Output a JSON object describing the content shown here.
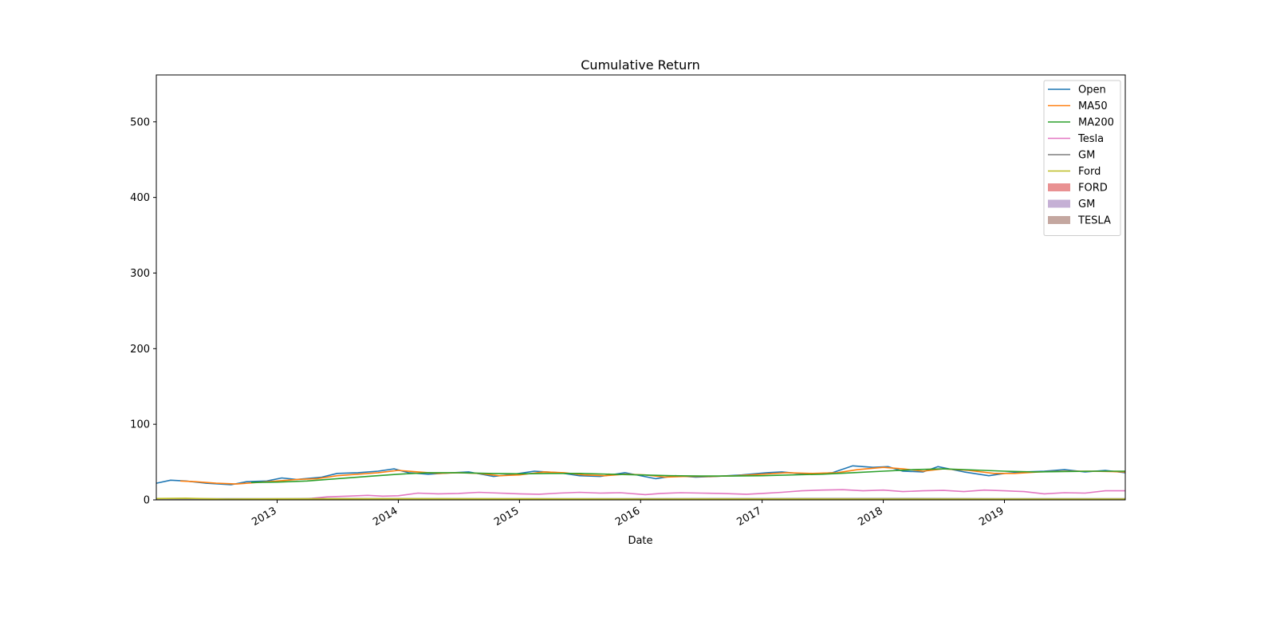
{
  "chart_data": {
    "type": "line",
    "title": "Cumulative Return",
    "xlabel": "Date",
    "ylabel": "",
    "xlim": [
      "2012-01-03",
      "2019-12-31"
    ],
    "ylim": [
      0,
      562
    ],
    "x_ticks": [
      "2013",
      "2014",
      "2015",
      "2016",
      "2017",
      "2018",
      "2019"
    ],
    "y_ticks": [
      0,
      100,
      200,
      300,
      400,
      500
    ],
    "grid": false,
    "legend_position": "upper-right",
    "series": [
      {
        "name": "Open",
        "color": "#1f77b4",
        "points": [
          [
            "2012-01-03",
            22
          ],
          [
            "2012-02-15",
            26
          ],
          [
            "2012-04-01",
            25
          ],
          [
            "2012-06-01",
            22
          ],
          [
            "2012-08-15",
            20
          ],
          [
            "2012-10-01",
            24
          ],
          [
            "2012-12-01",
            25
          ],
          [
            "2013-01-15",
            29
          ],
          [
            "2013-03-01",
            27
          ],
          [
            "2013-05-15",
            30
          ],
          [
            "2013-07-01",
            35
          ],
          [
            "2013-09-01",
            36
          ],
          [
            "2013-11-01",
            38
          ],
          [
            "2013-12-20",
            41
          ],
          [
            "2014-02-01",
            36
          ],
          [
            "2014-04-01",
            34
          ],
          [
            "2014-06-15",
            36
          ],
          [
            "2014-08-01",
            37
          ],
          [
            "2014-10-15",
            31
          ],
          [
            "2014-12-15",
            34
          ],
          [
            "2015-02-15",
            38
          ],
          [
            "2015-05-01",
            36
          ],
          [
            "2015-07-01",
            32
          ],
          [
            "2015-09-01",
            31
          ],
          [
            "2015-11-15",
            36
          ],
          [
            "2016-02-15",
            28
          ],
          [
            "2016-04-15",
            32
          ],
          [
            "2016-06-15",
            30
          ],
          [
            "2016-08-15",
            31
          ],
          [
            "2016-11-01",
            33
          ],
          [
            "2017-01-15",
            36
          ],
          [
            "2017-03-01",
            37
          ],
          [
            "2017-05-15",
            34
          ],
          [
            "2017-08-01",
            36
          ],
          [
            "2017-10-01",
            45
          ],
          [
            "2017-12-01",
            43
          ],
          [
            "2018-01-15",
            44
          ],
          [
            "2018-03-01",
            38
          ],
          [
            "2018-05-01",
            37
          ],
          [
            "2018-06-15",
            44
          ],
          [
            "2018-09-01",
            37
          ],
          [
            "2018-11-15",
            32
          ],
          [
            "2019-01-01",
            35
          ],
          [
            "2019-03-01",
            37
          ],
          [
            "2019-05-01",
            38
          ],
          [
            "2019-07-01",
            40
          ],
          [
            "2019-09-01",
            37
          ],
          [
            "2019-11-01",
            39
          ],
          [
            "2019-12-31",
            36
          ]
        ]
      },
      {
        "name": "MA50",
        "color": "#ff7f0e",
        "points": [
          [
            "2012-03-15",
            25
          ],
          [
            "2012-05-01",
            24
          ],
          [
            "2012-07-01",
            22
          ],
          [
            "2012-09-01",
            21
          ],
          [
            "2012-11-01",
            23
          ],
          [
            "2013-01-01",
            25
          ],
          [
            "2013-03-01",
            27
          ],
          [
            "2013-05-01",
            28
          ],
          [
            "2013-07-01",
            32
          ],
          [
            "2013-09-01",
            34
          ],
          [
            "2013-11-01",
            36
          ],
          [
            "2014-01-01",
            39
          ],
          [
            "2014-03-01",
            37
          ],
          [
            "2014-05-01",
            35
          ],
          [
            "2014-07-01",
            36
          ],
          [
            "2014-09-01",
            35
          ],
          [
            "2014-11-01",
            32
          ],
          [
            "2015-01-01",
            33
          ],
          [
            "2015-03-15",
            37
          ],
          [
            "2015-05-15",
            36
          ],
          [
            "2015-07-15",
            33
          ],
          [
            "2015-09-15",
            32
          ],
          [
            "2015-11-15",
            34
          ],
          [
            "2016-01-15",
            33
          ],
          [
            "2016-03-15",
            30
          ],
          [
            "2016-05-15",
            31
          ],
          [
            "2016-08-01",
            31
          ],
          [
            "2016-10-15",
            32
          ],
          [
            "2017-01-01",
            34
          ],
          [
            "2017-03-15",
            36
          ],
          [
            "2017-06-01",
            35
          ],
          [
            "2017-08-15",
            36
          ],
          [
            "2017-10-15",
            40
          ],
          [
            "2018-01-01",
            43
          ],
          [
            "2018-03-01",
            41
          ],
          [
            "2018-05-01",
            38
          ],
          [
            "2018-07-01",
            41
          ],
          [
            "2018-09-15",
            39
          ],
          [
            "2018-12-01",
            35
          ],
          [
            "2019-02-01",
            35
          ],
          [
            "2019-04-15",
            37
          ],
          [
            "2019-07-01",
            38
          ],
          [
            "2019-09-15",
            38
          ],
          [
            "2019-12-31",
            37
          ]
        ]
      },
      {
        "name": "MA200",
        "color": "#2ca02c",
        "points": [
          [
            "2012-10-15",
            23
          ],
          [
            "2013-01-01",
            23.5
          ],
          [
            "2013-04-01",
            25
          ],
          [
            "2013-07-01",
            28
          ],
          [
            "2013-10-01",
            31
          ],
          [
            "2014-01-01",
            34
          ],
          [
            "2014-04-01",
            36
          ],
          [
            "2014-07-01",
            36
          ],
          [
            "2014-10-01",
            35
          ],
          [
            "2015-01-01",
            34.5
          ],
          [
            "2015-04-01",
            35
          ],
          [
            "2015-07-01",
            35
          ],
          [
            "2015-10-01",
            34
          ],
          [
            "2016-01-01",
            33
          ],
          [
            "2016-04-01",
            32
          ],
          [
            "2016-07-01",
            31.5
          ],
          [
            "2016-10-01",
            31.5
          ],
          [
            "2017-01-01",
            32
          ],
          [
            "2017-04-01",
            33
          ],
          [
            "2017-07-01",
            34
          ],
          [
            "2017-10-01",
            36
          ],
          [
            "2018-01-01",
            38
          ],
          [
            "2018-04-01",
            40
          ],
          [
            "2018-07-01",
            41
          ],
          [
            "2018-10-01",
            39.5
          ],
          [
            "2019-01-01",
            38
          ],
          [
            "2019-04-01",
            37
          ],
          [
            "2019-07-01",
            37.5
          ],
          [
            "2019-10-01",
            38
          ],
          [
            "2019-12-31",
            38
          ]
        ]
      },
      {
        "name": "Tesla",
        "color": "#e377c2",
        "points": [
          [
            "2013-03-01",
            1
          ],
          [
            "2013-04-15",
            2
          ],
          [
            "2013-06-01",
            4
          ],
          [
            "2013-08-01",
            5
          ],
          [
            "2013-10-01",
            6
          ],
          [
            "2013-11-15",
            5
          ],
          [
            "2014-01-01",
            5.5
          ],
          [
            "2014-03-01",
            9
          ],
          [
            "2014-05-01",
            8
          ],
          [
            "2014-07-01",
            8.5
          ],
          [
            "2014-09-01",
            10
          ],
          [
            "2014-11-01",
            9
          ],
          [
            "2015-01-01",
            8
          ],
          [
            "2015-03-01",
            7.5
          ],
          [
            "2015-05-01",
            9
          ],
          [
            "2015-07-01",
            10
          ],
          [
            "2015-09-01",
            9
          ],
          [
            "2015-11-01",
            9.5
          ],
          [
            "2016-01-15",
            7
          ],
          [
            "2016-03-01",
            8.5
          ],
          [
            "2016-05-01",
            9.5
          ],
          [
            "2016-07-01",
            9
          ],
          [
            "2016-09-01",
            8.5
          ],
          [
            "2016-11-15",
            7.5
          ],
          [
            "2017-01-01",
            8.5
          ],
          [
            "2017-03-01",
            10
          ],
          [
            "2017-05-01",
            12
          ],
          [
            "2017-07-01",
            13
          ],
          [
            "2017-09-01",
            13.5
          ],
          [
            "2017-11-01",
            12
          ],
          [
            "2018-01-01",
            13
          ],
          [
            "2018-03-01",
            11
          ],
          [
            "2018-05-01",
            12
          ],
          [
            "2018-07-01",
            12.5
          ],
          [
            "2018-09-01",
            11
          ],
          [
            "2018-11-01",
            13
          ],
          [
            "2019-01-01",
            12
          ],
          [
            "2019-03-01",
            11
          ],
          [
            "2019-05-01",
            8
          ],
          [
            "2019-07-01",
            9.5
          ],
          [
            "2019-09-01",
            9
          ],
          [
            "2019-11-01",
            12
          ],
          [
            "2019-12-31",
            12
          ]
        ]
      },
      {
        "name": "GM",
        "color": "#7f7f7f",
        "points": [
          [
            "2012-01-03",
            1.5
          ],
          [
            "2013-01-01",
            1.6
          ],
          [
            "2014-01-01",
            1.7
          ],
          [
            "2015-01-01",
            1.6
          ],
          [
            "2016-01-01",
            1.5
          ],
          [
            "2017-01-01",
            1.7
          ],
          [
            "2018-01-01",
            1.8
          ],
          [
            "2019-01-01",
            1.6
          ],
          [
            "2019-12-31",
            1.6
          ]
        ]
      },
      {
        "name": "Ford",
        "color": "#bcbd22",
        "points": [
          [
            "2012-01-03",
            1.8
          ],
          [
            "2012-04-01",
            2.2
          ],
          [
            "2012-08-01",
            1.0
          ],
          [
            "2013-01-01",
            1.4
          ],
          [
            "2014-01-01",
            1.5
          ],
          [
            "2015-01-01",
            1.4
          ],
          [
            "2016-01-01",
            1.1
          ],
          [
            "2017-01-01",
            1.2
          ],
          [
            "2018-01-01",
            1.0
          ],
          [
            "2019-01-01",
            0.9
          ],
          [
            "2019-12-31",
            0.9
          ]
        ]
      }
    ],
    "legend_patches": [
      {
        "name": "FORD",
        "color": "#e99192"
      },
      {
        "name": "GM",
        "color": "#c5b0d5"
      },
      {
        "name": "TESLA",
        "color": "#c4a7a0"
      }
    ]
  }
}
